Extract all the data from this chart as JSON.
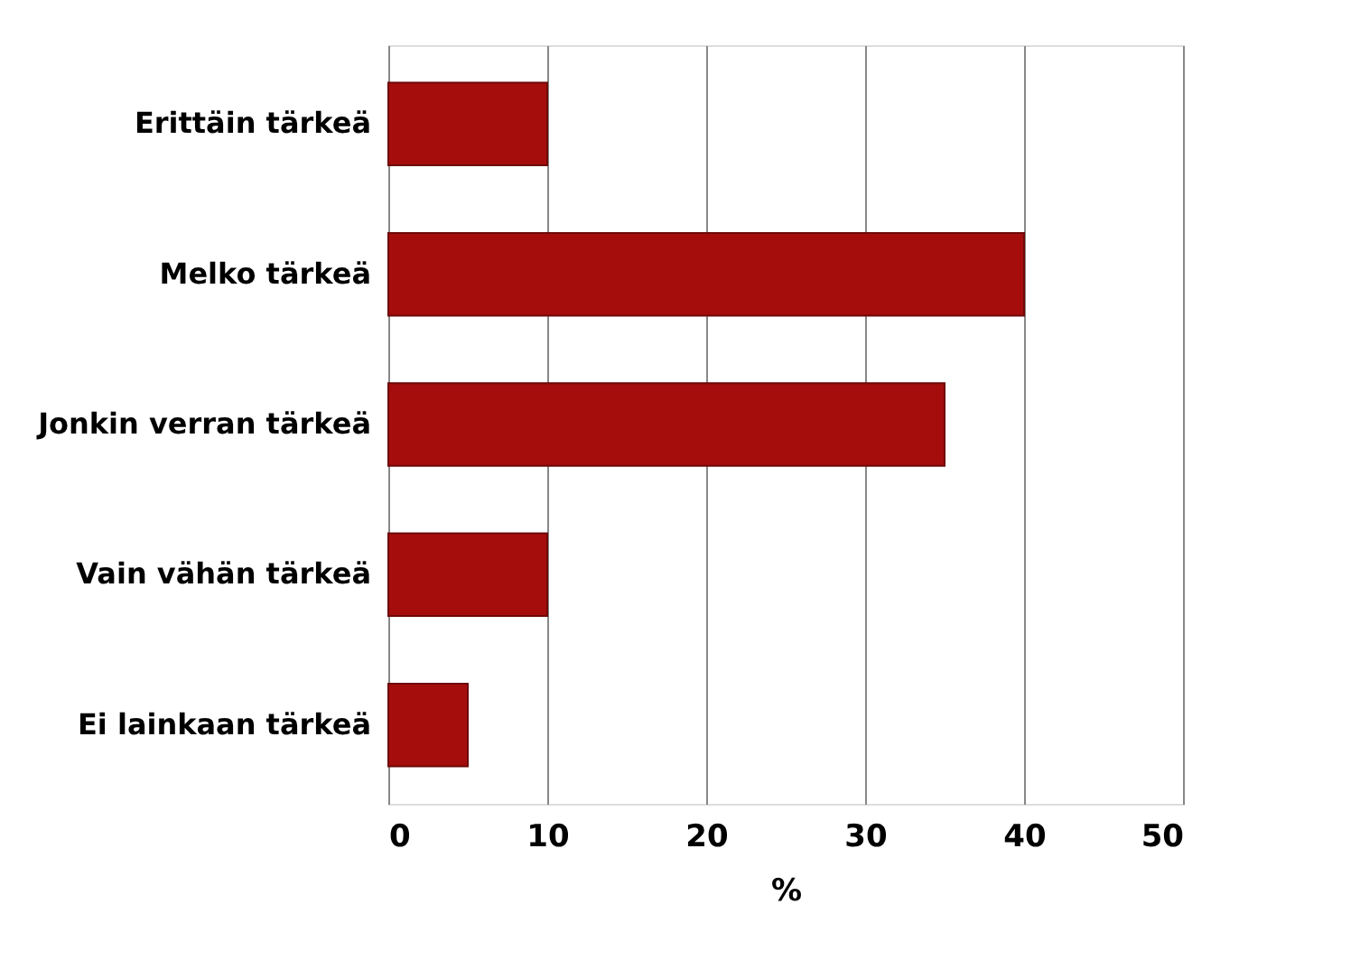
{
  "chart_data": {
    "type": "bar",
    "orientation": "horizontal",
    "categories": [
      "Erittäin tärkeä",
      "Melko tärkeä",
      "Jonkin verran tärkeä",
      "Vain vähän tärkeä",
      "Ei lainkaan tärkeä"
    ],
    "values": [
      10,
      40,
      35,
      10,
      5
    ],
    "color": "#a50d0d",
    "xlabel": "%",
    "xlim": [
      0,
      50
    ],
    "xticks": [
      0,
      10,
      20,
      30,
      40,
      50
    ],
    "grid": "x"
  }
}
